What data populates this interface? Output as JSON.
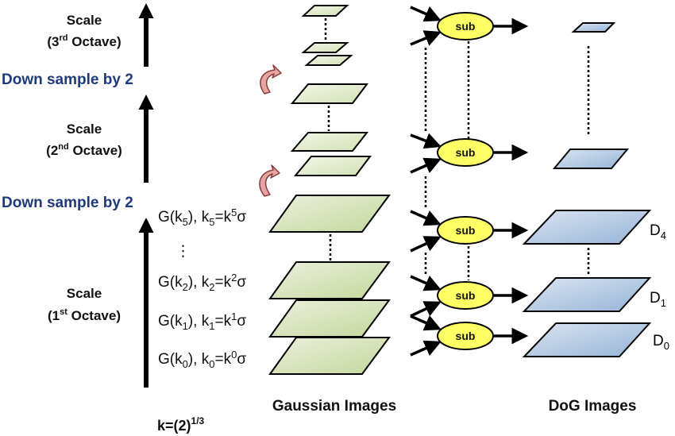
{
  "colors": {
    "gaussian_fill_light": "#ebf1de",
    "gaussian_fill_dark": "#c4d79b",
    "dog_fill_light": "#dce6f2",
    "dog_fill_dark": "#95b3d7",
    "sub_fill": "#ffff66",
    "down_sample_text": "#1f3a7a",
    "curved_arrow_fill": "#e6a5a0"
  },
  "octave_labels": {
    "third": {
      "line1": "Scale",
      "line2_pre": "(3",
      "line2_sup": "rd",
      "line2_post": " Octave)"
    },
    "second": {
      "line1": "Scale",
      "line2_pre": "(2",
      "line2_sup": "nd",
      "line2_post": " Octave)"
    },
    "first": {
      "line1": "Scale",
      "line2_pre": "(1",
      "line2_sup": "st",
      "line2_post": " Octave)"
    }
  },
  "down_sample": [
    "Down sample by 2",
    "Down sample by 2"
  ],
  "gaussian_labels": [
    {
      "pre": "G(k",
      "sub": "5",
      "mid": "), k",
      "sub2": "5",
      "eq": "=k",
      "sup": "5",
      "post": "σ"
    },
    {
      "pre": "G(k",
      "sub": "2",
      "mid": "), k",
      "sub2": "2",
      "eq": "=k",
      "sup": "2",
      "post": "σ"
    },
    {
      "pre": "G(k",
      "sub": "1",
      "mid": "), k",
      "sub2": "1",
      "eq": "=k",
      "sup": "1",
      "post": "σ"
    },
    {
      "pre": "G(k",
      "sub": "0",
      "mid": "), k",
      "sub2": "0",
      "eq": "=k",
      "sup": "0",
      "post": "σ"
    }
  ],
  "ellipsis": "⋮",
  "sub_label": "sub",
  "dog_labels": [
    {
      "base": "D",
      "sub": "4"
    },
    {
      "base": "D",
      "sub": "1"
    },
    {
      "base": "D",
      "sub": "0"
    }
  ],
  "bottom": {
    "gaussian": "Gaussian Images",
    "dog": "DoG Images",
    "k_pre": "k=(2)",
    "k_sup": "1/3"
  }
}
